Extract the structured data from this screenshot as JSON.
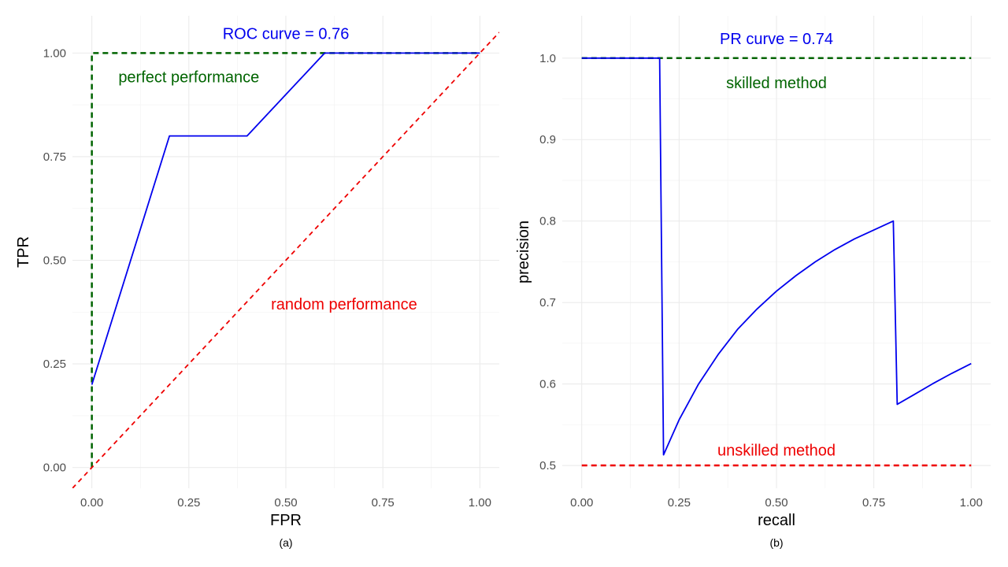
{
  "colors": {
    "curve": "#0000ee",
    "skilled": "#006400",
    "unskilled": "#ee0000",
    "grid_major": "#ebebeb",
    "grid_minor": "#f3f3f3",
    "tick": "#4d4d4d"
  },
  "chart_data": [
    {
      "type": "line",
      "caption": "(a)",
      "xlabel": "FPR",
      "ylabel": "TPR",
      "xlim": [
        -0.05,
        1.05
      ],
      "ylim": [
        -0.05,
        1.09
      ],
      "x_ticks": [
        0,
        0.25,
        0.5,
        0.75,
        1
      ],
      "x_tick_labels": [
        "0.00",
        "0.25",
        "0.50",
        "0.75",
        "1.00"
      ],
      "y_ticks": [
        0,
        0.25,
        0.5,
        0.75,
        1
      ],
      "y_tick_labels": [
        "0.00",
        "0.25",
        "0.50",
        "0.75",
        "1.00"
      ],
      "grid": true,
      "series": [
        {
          "role": "curve",
          "color": "#0000ee",
          "dashed": false,
          "width": 1.8,
          "x": [
            0,
            0,
            0.2,
            0.4,
            0.6,
            1.0
          ],
          "y": [
            0.2,
            0.2,
            0.8,
            0.8,
            1.0,
            1.0
          ]
        },
        {
          "role": "perfect",
          "color": "#006400",
          "dashed": true,
          "width": 2.5,
          "x": [
            0,
            0,
            1
          ],
          "y": [
            0,
            1,
            1
          ]
        },
        {
          "role": "random",
          "color": "#ee0000",
          "dashed": true,
          "width": 1.8,
          "x": [
            -0.05,
            1.05
          ],
          "y": [
            -0.05,
            1.05
          ]
        }
      ],
      "annotations": [
        {
          "text": "ROC curve = 0.76",
          "x": 0.5,
          "y": 1.047,
          "color": "#0000ee"
        },
        {
          "text": "perfect performance",
          "x": 0.25,
          "y": 0.943,
          "color": "#006400"
        },
        {
          "text": "random performance",
          "x": 0.65,
          "y": 0.395,
          "color": "#ee0000"
        }
      ]
    },
    {
      "type": "line",
      "caption": "(b)",
      "xlabel": "recall",
      "ylabel": "precision",
      "xlim": [
        -0.05,
        1.05
      ],
      "ylim": [
        0.472,
        1.052
      ],
      "x_ticks": [
        0,
        0.25,
        0.5,
        0.75,
        1
      ],
      "x_tick_labels": [
        "0.00",
        "0.25",
        "0.50",
        "0.75",
        "1.00"
      ],
      "y_ticks": [
        0.5,
        0.6,
        0.7,
        0.8,
        0.9,
        1.0
      ],
      "y_tick_labels": [
        "0.5",
        "0.6",
        "0.7",
        "0.8",
        "0.9",
        "1.0"
      ],
      "grid": true,
      "series": [
        {
          "role": "curve",
          "color": "#0000ee",
          "dashed": false,
          "width": 1.8,
          "x": [
            0,
            0.2,
            0.21,
            0.25,
            0.3,
            0.35,
            0.4,
            0.45,
            0.5,
            0.55,
            0.6,
            0.65,
            0.7,
            0.75,
            0.8,
            0.81,
            0.85,
            0.9,
            0.95,
            1.0
          ],
          "y": [
            1.0,
            1.0,
            0.513,
            0.556,
            0.6,
            0.636,
            0.667,
            0.692,
            0.714,
            0.733,
            0.75,
            0.765,
            0.778,
            0.789,
            0.8,
            0.575,
            0.586,
            0.6,
            0.613,
            0.625
          ]
        },
        {
          "role": "skilled",
          "color": "#006400",
          "dashed": true,
          "width": 2.5,
          "x": [
            0,
            1
          ],
          "y": [
            1.0,
            1.0
          ]
        },
        {
          "role": "unskilled",
          "color": "#ee0000",
          "dashed": true,
          "width": 2.5,
          "x": [
            0,
            1
          ],
          "y": [
            0.5,
            0.5
          ]
        }
      ],
      "annotations": [
        {
          "text": "PR curve = 0.74",
          "x": 0.5,
          "y": 1.024,
          "color": "#0000ee"
        },
        {
          "text": "skilled method",
          "x": 0.5,
          "y": 0.97,
          "color": "#006400"
        },
        {
          "text": "unskilled method",
          "x": 0.5,
          "y": 0.519,
          "color": "#ee0000"
        }
      ]
    }
  ]
}
